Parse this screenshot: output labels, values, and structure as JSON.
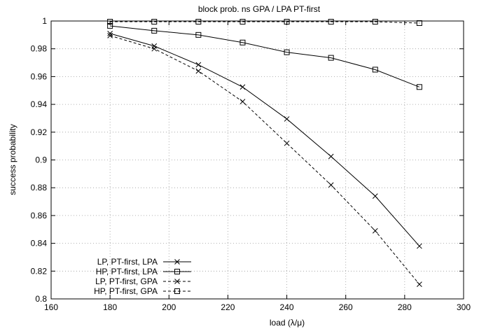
{
  "chart_data": {
    "type": "line",
    "title": "block prob. ns GPA / LPA PT-first",
    "xlabel": "load (λ/μ)",
    "ylabel": "success probability",
    "xlim": [
      160,
      300
    ],
    "ylim": [
      0.8,
      1.0
    ],
    "xticks": [
      160,
      180,
      200,
      220,
      240,
      260,
      280,
      300
    ],
    "yticks": [
      0.8,
      0.82,
      0.84,
      0.86,
      0.88,
      0.9,
      0.92,
      0.94,
      0.96,
      0.98,
      1.0
    ],
    "grid": true,
    "legend_position": "bottom-left",
    "x": [
      180,
      195,
      210,
      225,
      240,
      255,
      270,
      285
    ],
    "series": [
      {
        "name": "LP, PT-first, LPA",
        "marker": "x",
        "dash": "solid",
        "values": [
          0.991,
          0.982,
          0.9685,
          0.9525,
          0.9295,
          0.9025,
          0.874,
          0.838
        ]
      },
      {
        "name": "HP, PT-first, LPA",
        "marker": "square",
        "dash": "solid",
        "values": [
          0.9965,
          0.993,
          0.99,
          0.9845,
          0.9775,
          0.9735,
          0.965,
          0.9525
        ]
      },
      {
        "name": "LP, PT-first, GPA",
        "marker": "x",
        "dash": "dashed",
        "values": [
          0.9895,
          0.98,
          0.964,
          0.942,
          0.912,
          0.882,
          0.849,
          0.8105
        ]
      },
      {
        "name": "HP, PT-first, GPA",
        "marker": "square",
        "dash": "dashed",
        "values": [
          0.9995,
          0.9995,
          0.9995,
          0.9995,
          0.9995,
          0.9995,
          0.9995,
          0.9985
        ]
      }
    ]
  }
}
